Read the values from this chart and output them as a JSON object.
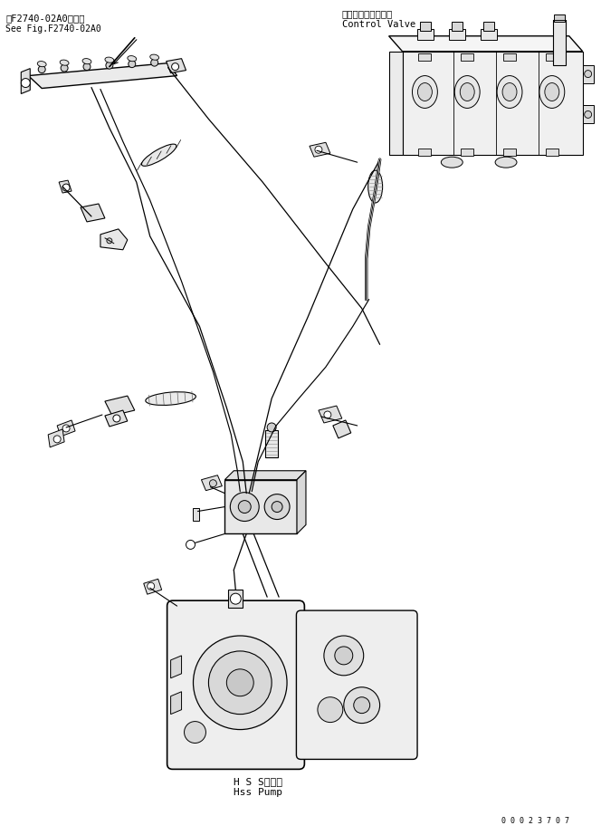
{
  "background_color": "#ffffff",
  "fig_width": 6.64,
  "fig_height": 9.22,
  "title_top_left_line1": "第F2740-02A0図参照",
  "title_top_left_line2": "See Fig.F2740-02A0",
  "title_top_right_line1": "コントロールバルブ",
  "title_top_right_line2": "Control Valve",
  "label_bottom_line1": "H S Sポンプ",
  "label_bottom_line2": "Hss Pump",
  "serial_number": "0 0 0 2 3 7 0 7",
  "bg": "#ffffff",
  "fg": "#000000"
}
